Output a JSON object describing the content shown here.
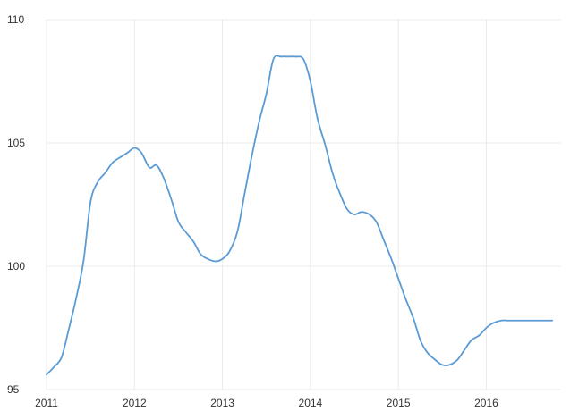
{
  "chart_data": {
    "type": "line",
    "title": "",
    "xlabel": "",
    "ylabel": "",
    "xlim": [
      2011.0,
      2016.85
    ],
    "ylim": [
      95,
      110
    ],
    "x_ticks": [
      2011,
      2012,
      2013,
      2014,
      2015,
      2016
    ],
    "x_tick_labels": [
      "2011",
      "2012",
      "2013",
      "2014",
      "2015",
      "2016"
    ],
    "y_ticks": [
      95,
      100,
      105,
      110
    ],
    "y_tick_labels": [
      "95",
      "100",
      "105",
      "110"
    ],
    "grid": true,
    "legend": "none",
    "colors": {
      "line": "#5b9bd5",
      "grid": "#ebebeb",
      "text": "#333333"
    },
    "series": [
      {
        "x": [
          2011.0,
          2011.08,
          2011.17,
          2011.25,
          2011.33,
          2011.42,
          2011.5,
          2011.58,
          2011.67,
          2011.75,
          2011.83,
          2011.92,
          2012.0,
          2012.08,
          2012.17,
          2012.25,
          2012.33,
          2012.42,
          2012.5,
          2012.58,
          2012.67,
          2012.75,
          2012.83,
          2012.92,
          2013.0,
          2013.08,
          2013.17,
          2013.25,
          2013.33,
          2013.42,
          2013.5,
          2013.58,
          2013.67,
          2013.75,
          2013.83,
          2013.92,
          2014.0,
          2014.08,
          2014.17,
          2014.25,
          2014.33,
          2014.42,
          2014.5,
          2014.58,
          2014.67,
          2014.75,
          2014.83,
          2014.92,
          2015.0,
          2015.08,
          2015.17,
          2015.25,
          2015.33,
          2015.42,
          2015.5,
          2015.58,
          2015.67,
          2015.75,
          2015.83,
          2015.92,
          2016.0,
          2016.08,
          2016.17,
          2016.25,
          2016.33,
          2016.42,
          2016.5,
          2016.58,
          2016.67,
          2016.75
        ],
        "values": [
          95.6,
          95.9,
          96.3,
          97.4,
          98.6,
          100.2,
          102.6,
          103.4,
          103.8,
          104.2,
          104.4,
          104.6,
          104.8,
          104.6,
          104.0,
          104.1,
          103.6,
          102.7,
          101.8,
          101.4,
          101.0,
          100.5,
          100.3,
          100.2,
          100.3,
          100.6,
          101.4,
          102.9,
          104.4,
          105.9,
          107.0,
          108.4,
          108.5,
          108.5,
          108.5,
          108.4,
          107.5,
          106.0,
          104.9,
          103.8,
          103.0,
          102.3,
          102.1,
          102.2,
          102.1,
          101.8,
          101.1,
          100.3,
          99.5,
          98.7,
          97.9,
          97.0,
          96.5,
          96.2,
          96.0,
          96.0,
          96.2,
          96.6,
          97.0,
          97.2,
          97.5,
          97.7,
          97.8,
          97.8,
          97.8,
          97.8,
          97.8,
          97.8,
          97.8,
          97.8
        ]
      }
    ]
  }
}
